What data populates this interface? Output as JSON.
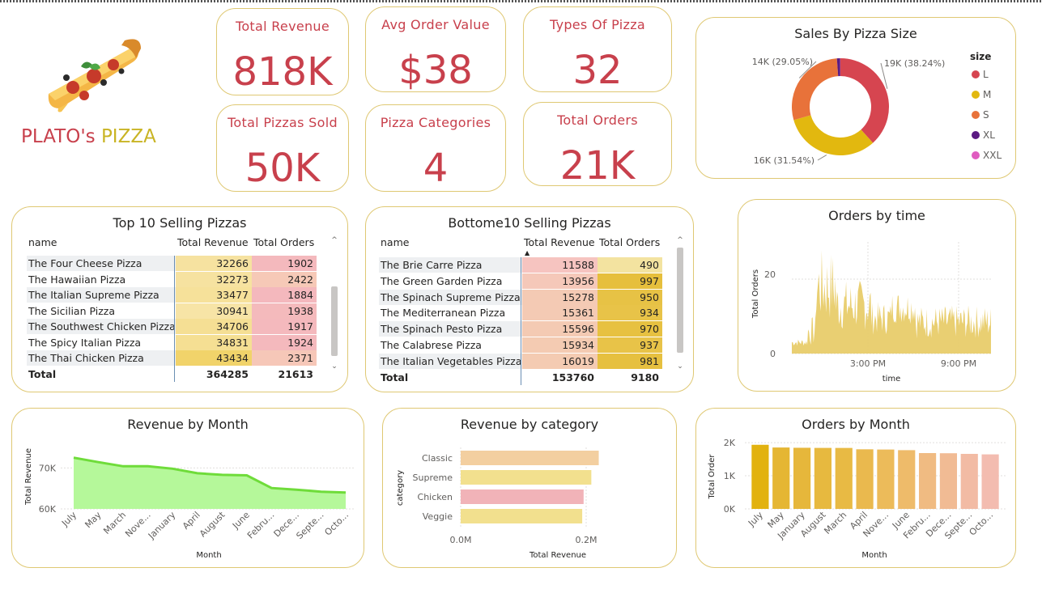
{
  "brand": {
    "name_part1": "PLATO's",
    "name_part2": "PIZZA",
    "logo": "pizza-slice-icon"
  },
  "kpis": [
    {
      "label": "Total Revenue",
      "value": "818K"
    },
    {
      "label": "Avg Order Value",
      "value": "$38"
    },
    {
      "label": "Types Of Pizza",
      "value": "32"
    },
    {
      "label": "Total Pizzas Sold",
      "value": "50K"
    },
    {
      "label": "Pizza Categories",
      "value": "4"
    },
    {
      "label": "Total Orders",
      "value": "21K"
    }
  ],
  "colors": {
    "accent_red": "#c8404c",
    "accent_gold": "#c9b424",
    "border": "#dfc873"
  },
  "top10": {
    "title": "Top 10 Selling Pizzas",
    "columns": [
      "name",
      "Total Revenue",
      "Total Orders"
    ],
    "rows": [
      [
        "The Four Cheese Pizza",
        "32266",
        "1902"
      ],
      [
        "The Hawaiian Pizza",
        "32273",
        "2422"
      ],
      [
        "The Italian Supreme Pizza",
        "33477",
        "1884"
      ],
      [
        "The Sicilian Pizza",
        "30941",
        "1938"
      ],
      [
        "The Southwest Chicken Pizza",
        "34706",
        "1917"
      ],
      [
        "The Spicy Italian Pizza",
        "34831",
        "1924"
      ],
      [
        "The Thai Chicken Pizza",
        "43434",
        "2371"
      ]
    ],
    "total": [
      "Total",
      "364285",
      "21613"
    ]
  },
  "bottom10": {
    "title": "Bottome10 Selling Pizzas",
    "columns": [
      "name",
      "Total Revenue",
      "Total Orders"
    ],
    "rows": [
      [
        "The Brie Carre Pizza",
        "11588",
        "490"
      ],
      [
        "The Green Garden Pizza",
        "13956",
        "997"
      ],
      [
        "The Spinach Supreme Pizza",
        "15278",
        "950"
      ],
      [
        "The Mediterranean Pizza",
        "15361",
        "934"
      ],
      [
        "The Spinach Pesto Pizza",
        "15596",
        "970"
      ],
      [
        "The Calabrese Pizza",
        "15934",
        "937"
      ],
      [
        "The Italian Vegetables Pizza",
        "16019",
        "981"
      ]
    ],
    "total": [
      "Total",
      "153760",
      "9180"
    ]
  },
  "chart_data": [
    {
      "type": "pie",
      "title": "Sales By Pizza Size",
      "legend_title": "size",
      "legend_position": "right",
      "labels": [
        "L",
        "M",
        "S",
        "XL",
        "XXL"
      ],
      "values": [
        19000,
        16000,
        14000,
        544,
        28
      ],
      "data_labels": [
        "19K (38.24%)",
        "16K (31.54%)",
        "14K (29.05%)",
        "",
        ""
      ],
      "colors": [
        "#d64550",
        "#e2b80f",
        "#e8723a",
        "#5b1a82",
        "#e05cc0"
      ]
    },
    {
      "type": "area",
      "title": "Orders by time",
      "xlabel": "time",
      "ylabel": "Total Orders",
      "x_ticks": [
        "3:00 PM",
        "9:00 PM"
      ],
      "y_ticks": [
        "0",
        "20"
      ],
      "ylim": [
        0,
        30
      ],
      "color": "#e8cc6a"
    },
    {
      "type": "area",
      "title": "Revenue by Month",
      "xlabel": "Month",
      "ylabel": "Total Revenue",
      "categories": [
        "July",
        "May",
        "March",
        "Nove...",
        "January",
        "April",
        "August",
        "June",
        "Febru...",
        "Dece...",
        "Septe...",
        "Octo..."
      ],
      "values": [
        72500,
        71400,
        70400,
        70400,
        69800,
        68700,
        68300,
        68200,
        65100,
        64700,
        64200,
        64000
      ],
      "y_ticks": [
        60000,
        70000
      ],
      "y_tick_labels": [
        "60K",
        "70K"
      ],
      "ylim": [
        60000,
        75000
      ],
      "color": "#a6f57f"
    },
    {
      "type": "bar",
      "title": "Revenue by category",
      "xlabel": "Total Revenue",
      "ylabel": "category",
      "categories": [
        "Classic",
        "Supreme",
        "Chicken",
        "Veggie"
      ],
      "values": [
        220053,
        208197,
        195920,
        193690
      ],
      "x_ticks": [
        0,
        200000
      ],
      "x_tick_labels": [
        "0.0M",
        "0.2M"
      ],
      "xlim": [
        0,
        240000
      ],
      "colors": [
        "#f3cfa0",
        "#f2e08e",
        "#f1b3b8",
        "#f2e08e"
      ]
    },
    {
      "type": "bar",
      "title": "Orders by Month",
      "xlabel": "Month",
      "ylabel": "Total Order",
      "categories": [
        "July",
        "May",
        "January",
        "August",
        "March",
        "April",
        "Nove...",
        "June",
        "Febru...",
        "Dece...",
        "Septe...",
        "Octo..."
      ],
      "values": [
        1935,
        1853,
        1845,
        1841,
        1840,
        1799,
        1792,
        1773,
        1685,
        1680,
        1661,
        1646
      ],
      "y_ticks": [
        0,
        1000,
        2000
      ],
      "y_tick_labels": [
        "0K",
        "1K",
        "2K"
      ],
      "ylim": [
        0,
        2100
      ],
      "colors": [
        "#e2b20f",
        "#e5b633",
        "#e6b73b",
        "#e7b93f",
        "#e8ba44",
        "#eab94e",
        "#ecbb5a",
        "#eebb6a",
        "#f0bb82",
        "#f1bb94",
        "#f2bba4",
        "#f3bcb0"
      ]
    }
  ]
}
